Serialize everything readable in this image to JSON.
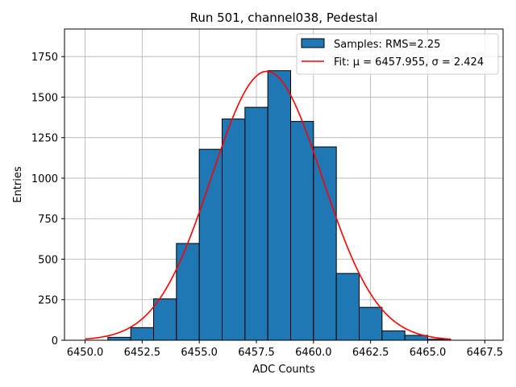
{
  "chart_data": {
    "type": "bar",
    "title": "Run 501, channel038, Pedestal",
    "xlabel": "ADC Counts",
    "ylabel": "Entries",
    "xlim": [
      6449.1,
      6468.3
    ],
    "ylim": [
      0,
      1920
    ],
    "xticks": [
      6450.0,
      6452.5,
      6455.0,
      6457.5,
      6460.0,
      6462.5,
      6465.0,
      6467.5
    ],
    "xtick_labels": [
      "6450.0",
      "6452.5",
      "6455.0",
      "6457.5",
      "6460.0",
      "6462.5",
      "6465.0",
      "6467.5"
    ],
    "yticks": [
      0,
      250,
      500,
      750,
      1000,
      1250,
      1500,
      1750
    ],
    "ytick_labels": [
      "0",
      "250",
      "500",
      "750",
      "1000",
      "1250",
      "1500",
      "1750"
    ],
    "grid": true,
    "legend_position": "top-right",
    "histogram": {
      "name": "Samples: RMS=2.25",
      "color": "#1f77b4",
      "edge_color": "#000000",
      "bin_edges": [
        6451,
        6452,
        6453,
        6454,
        6455,
        6456,
        6457,
        6458,
        6459,
        6460,
        6461,
        6462,
        6463,
        6464,
        6465,
        6466
      ],
      "counts": [
        18,
        78,
        255,
        597,
        1178,
        1365,
        1437,
        1663,
        1350,
        1193,
        412,
        203,
        58,
        30,
        6
      ]
    },
    "fit": {
      "name": "Fit: μ = 6457.955, σ = 2.424",
      "color": "#ff0000",
      "mu": 6457.955,
      "sigma": 2.424,
      "amplitude": 1659,
      "x_range": [
        6450,
        6466
      ]
    }
  }
}
